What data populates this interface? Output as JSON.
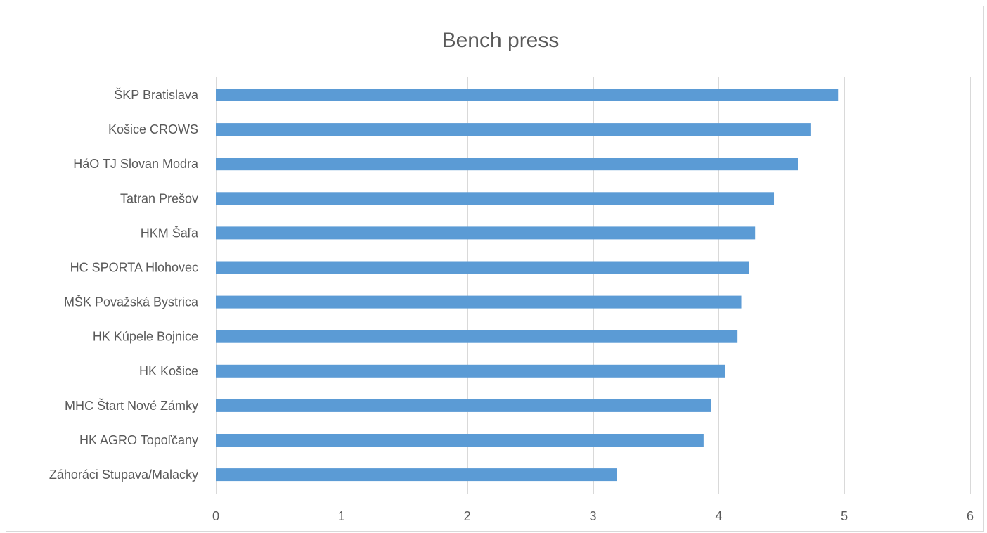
{
  "chart_data": {
    "type": "bar",
    "orientation": "horizontal",
    "title": "Bench press",
    "xlabel": "",
    "ylabel": "",
    "categories": [
      "ŠKP Bratislava",
      "Košice CROWS",
      "HáO TJ Slovan Modra",
      "Tatran Prešov",
      "HKM Šaľa",
      "HC SPORTA Hlohovec",
      "MŠK Považská Bystrica",
      "HK Kúpele Bojnice",
      "HK Košice",
      "MHC Štart Nové Zámky",
      "HK AGRO Topoľčany",
      "Záhoráci Stupava/Malacky"
    ],
    "values": [
      4.95,
      4.73,
      4.63,
      4.44,
      4.29,
      4.24,
      4.18,
      4.15,
      4.05,
      3.94,
      3.88,
      3.19
    ],
    "xlim": [
      0,
      6
    ],
    "xticks": [
      "0",
      "1",
      "2",
      "3",
      "4",
      "5",
      "6"
    ],
    "grid": true,
    "legend": "none",
    "bar_color": "#5b9bd5",
    "grid_color": "#d9d9d9",
    "text_color": "#595959"
  }
}
